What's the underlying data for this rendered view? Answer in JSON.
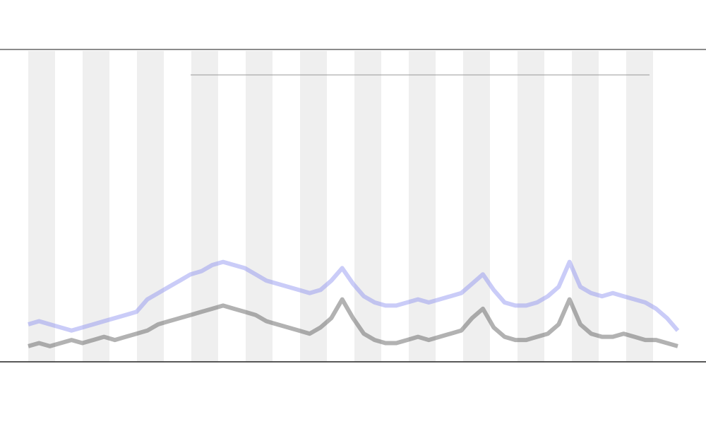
{
  "chart_data": {
    "type": "line",
    "x": [
      0,
      1,
      2,
      3,
      4,
      5,
      6,
      7,
      8,
      9,
      10,
      11,
      12,
      13,
      14,
      15,
      16,
      17,
      18,
      19,
      20,
      21,
      22,
      23,
      24,
      25,
      26,
      27,
      28,
      29,
      30,
      31,
      32,
      33,
      34,
      35,
      36,
      37,
      38,
      39,
      40,
      41,
      42,
      43,
      44,
      45,
      46,
      47,
      48,
      49,
      50,
      51,
      52,
      53,
      54,
      55,
      56,
      57,
      58,
      59,
      60
    ],
    "xlim": [
      0,
      60
    ],
    "ylim": [
      0,
      100
    ],
    "series": [
      {
        "color": "#8a8ff0",
        "values": [
          12,
          13,
          12,
          11,
          10,
          11,
          12,
          13,
          14,
          15,
          16,
          20,
          22,
          24,
          26,
          28,
          29,
          31,
          32,
          31,
          30,
          28,
          26,
          25,
          24,
          23,
          22,
          23,
          26,
          30,
          25,
          21,
          19,
          18,
          18,
          19,
          20,
          19,
          20,
          21,
          22,
          25,
          28,
          23,
          19,
          18,
          18,
          19,
          21,
          24,
          32,
          24,
          22,
          21,
          22,
          21,
          20,
          19,
          17,
          14,
          10
        ]
      },
      {
        "color": "#555555",
        "values": [
          5,
          6,
          5,
          6,
          7,
          6,
          7,
          8,
          7,
          8,
          9,
          10,
          12,
          13,
          14,
          15,
          16,
          17,
          18,
          17,
          16,
          15,
          13,
          12,
          11,
          10,
          9,
          11,
          14,
          20,
          14,
          9,
          7,
          6,
          6,
          7,
          8,
          7,
          8,
          9,
          10,
          14,
          17,
          11,
          8,
          7,
          7,
          8,
          9,
          12,
          20,
          12,
          9,
          8,
          8,
          9,
          8,
          7,
          7,
          6,
          5
        ]
      }
    ]
  }
}
